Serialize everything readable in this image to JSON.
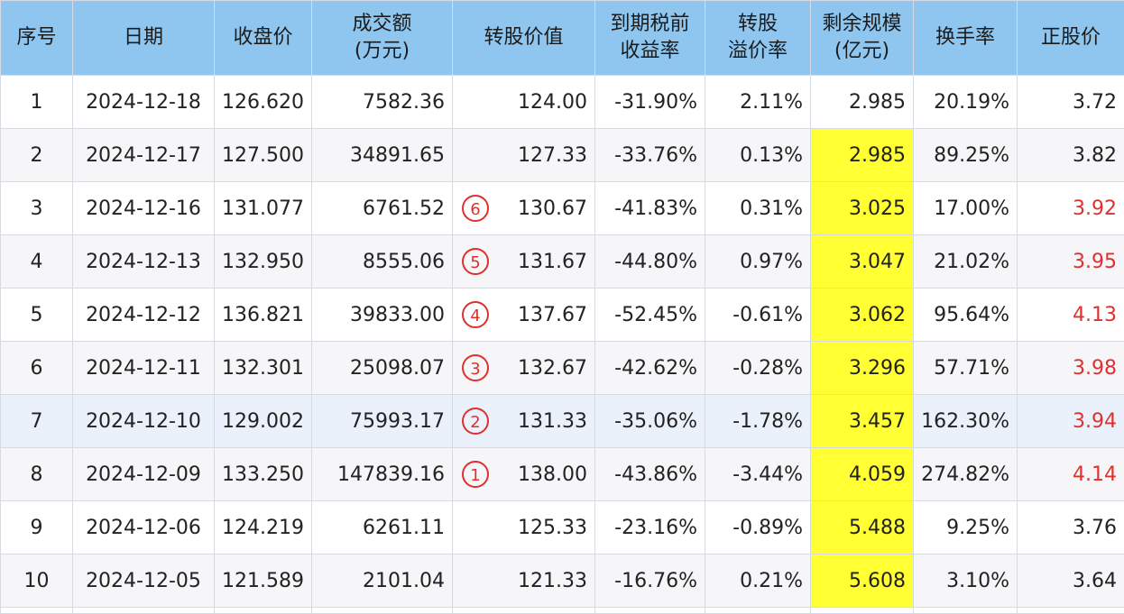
{
  "headers": [
    {
      "line1": "序号",
      "line2": ""
    },
    {
      "line1": "日期",
      "line2": ""
    },
    {
      "line1": "收盘价",
      "line2": ""
    },
    {
      "line1": "成交额",
      "line2": "(万元)"
    },
    {
      "line1": "转股价值",
      "line2": ""
    },
    {
      "line1": "到期税前",
      "line2": "收益率"
    },
    {
      "line1": "转股",
      "line2": "溢价率"
    },
    {
      "line1": "剩余规模",
      "line2": "(亿元)"
    },
    {
      "line1": "换手率",
      "line2": ""
    },
    {
      "line1": "正股价",
      "line2": ""
    }
  ],
  "rows": [
    {
      "idx": "1",
      "date": "2024-12-18",
      "close": "126.620",
      "amount": "7582.36",
      "marker": "",
      "conv": "124.00",
      "ytm": "-31.90%",
      "premium": "2.11%",
      "remain": "2.985",
      "remain_hl": false,
      "turnover": "20.19%",
      "stock": "3.72",
      "stock_red": false
    },
    {
      "idx": "2",
      "date": "2024-12-17",
      "close": "127.500",
      "amount": "34891.65",
      "marker": "",
      "conv": "127.33",
      "ytm": "-33.76%",
      "premium": "0.13%",
      "remain": "2.985",
      "remain_hl": true,
      "turnover": "89.25%",
      "stock": "3.82",
      "stock_red": false
    },
    {
      "idx": "3",
      "date": "2024-12-16",
      "close": "131.077",
      "amount": "6761.52",
      "marker": "6",
      "conv": "130.67",
      "ytm": "-41.83%",
      "premium": "0.31%",
      "remain": "3.025",
      "remain_hl": true,
      "turnover": "17.00%",
      "stock": "3.92",
      "stock_red": true
    },
    {
      "idx": "4",
      "date": "2024-12-13",
      "close": "132.950",
      "amount": "8555.06",
      "marker": "5",
      "conv": "131.67",
      "ytm": "-44.80%",
      "premium": "0.97%",
      "remain": "3.047",
      "remain_hl": true,
      "turnover": "21.02%",
      "stock": "3.95",
      "stock_red": true
    },
    {
      "idx": "5",
      "date": "2024-12-12",
      "close": "136.821",
      "amount": "39833.00",
      "marker": "4",
      "conv": "137.67",
      "ytm": "-52.45%",
      "premium": "-0.61%",
      "remain": "3.062",
      "remain_hl": true,
      "turnover": "95.64%",
      "stock": "4.13",
      "stock_red": true
    },
    {
      "idx": "6",
      "date": "2024-12-11",
      "close": "132.301",
      "amount": "25098.07",
      "marker": "3",
      "conv": "132.67",
      "ytm": "-42.62%",
      "premium": "-0.28%",
      "remain": "3.296",
      "remain_hl": true,
      "turnover": "57.71%",
      "stock": "3.98",
      "stock_red": true
    },
    {
      "idx": "7",
      "date": "2024-12-10",
      "close": "129.002",
      "amount": "75993.17",
      "marker": "2",
      "conv": "131.33",
      "ytm": "-35.06%",
      "premium": "-1.78%",
      "remain": "3.457",
      "remain_hl": true,
      "turnover": "162.30%",
      "stock": "3.94",
      "stock_red": true
    },
    {
      "idx": "8",
      "date": "2024-12-09",
      "close": "133.250",
      "amount": "147839.16",
      "marker": "1",
      "conv": "138.00",
      "ytm": "-43.86%",
      "premium": "-3.44%",
      "remain": "4.059",
      "remain_hl": true,
      "turnover": "274.82%",
      "stock": "4.14",
      "stock_red": true
    },
    {
      "idx": "9",
      "date": "2024-12-06",
      "close": "124.219",
      "amount": "6261.11",
      "marker": "",
      "conv": "125.33",
      "ytm": "-23.16%",
      "premium": "-0.89%",
      "remain": "5.488",
      "remain_hl": true,
      "turnover": "9.25%",
      "stock": "3.76",
      "stock_red": false
    },
    {
      "idx": "10",
      "date": "2024-12-05",
      "close": "121.589",
      "amount": "2101.04",
      "marker": "",
      "conv": "121.33",
      "ytm": "-16.76%",
      "premium": "0.21%",
      "remain": "5.608",
      "remain_hl": true,
      "turnover": "3.10%",
      "stock": "3.64",
      "stock_red": false
    }
  ],
  "colors": {
    "header_bg": "#8ec6f0",
    "highlight_yellow": "#ffff33",
    "red_text": "#e0302e",
    "hover_row": "#eaf1fb"
  }
}
